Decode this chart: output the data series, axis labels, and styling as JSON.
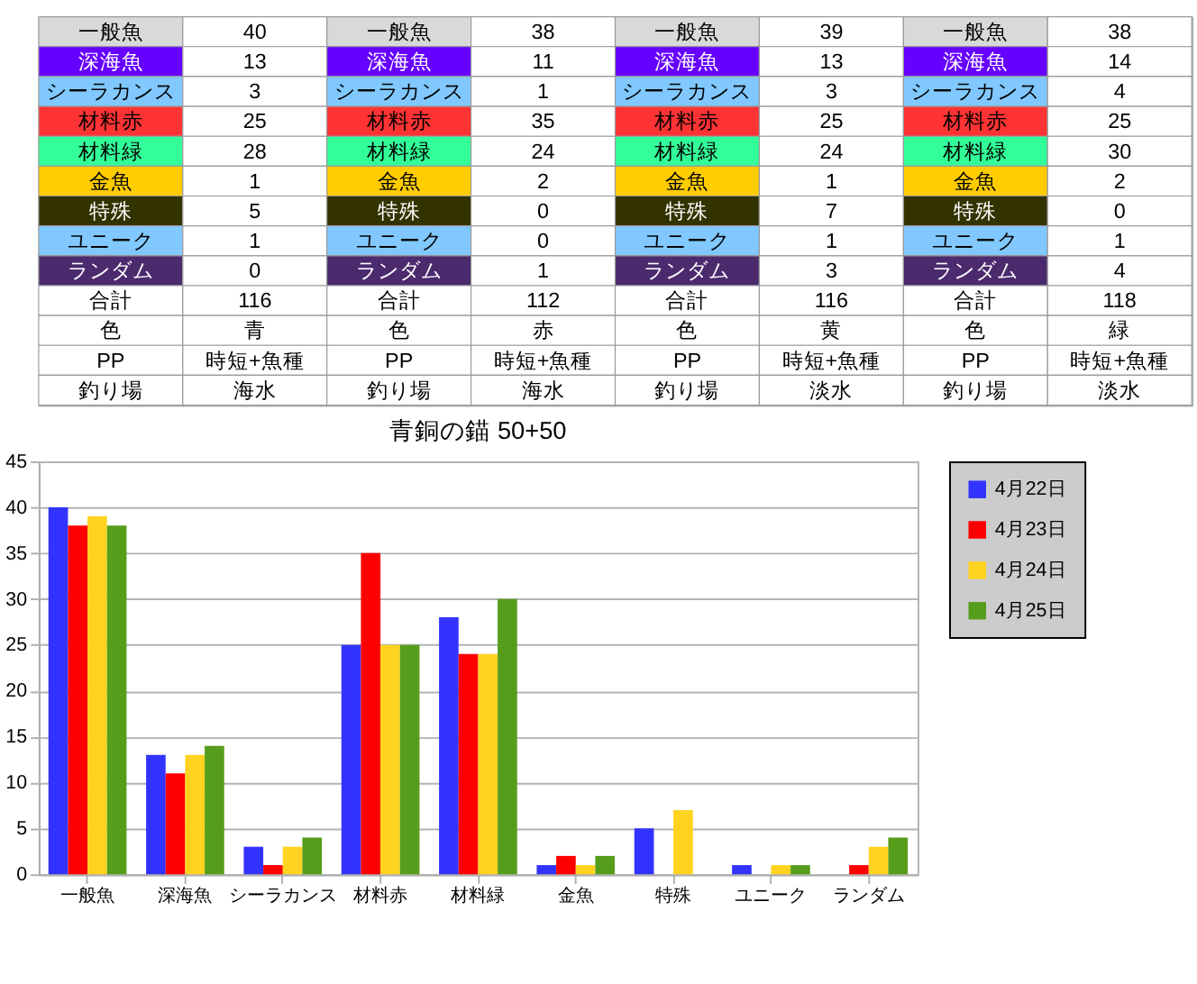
{
  "chart_data": {
    "type": "bar",
    "title": "青銅の錨 50+50",
    "categories": [
      "一般魚",
      "深海魚",
      "シーラカンス",
      "材料赤",
      "材料緑",
      "金魚",
      "特殊",
      "ユニーク",
      "ランダム"
    ],
    "series": [
      {
        "name": "4月22日",
        "color": "#3333ff",
        "values": [
          40,
          13,
          3,
          25,
          28,
          1,
          5,
          1,
          0
        ]
      },
      {
        "name": "4月23日",
        "color": "#ff0000",
        "values": [
          38,
          11,
          1,
          35,
          24,
          2,
          0,
          0,
          1
        ]
      },
      {
        "name": "4月24日",
        "color": "#ffd320",
        "values": [
          39,
          13,
          3,
          25,
          24,
          1,
          7,
          1,
          3
        ]
      },
      {
        "name": "4月25日",
        "color": "#579d1c",
        "values": [
          38,
          14,
          4,
          25,
          30,
          2,
          0,
          1,
          4
        ]
      }
    ],
    "ylim": [
      0,
      45
    ],
    "yticks": [
      0,
      5,
      10,
      15,
      20,
      25,
      30,
      35,
      40,
      45
    ],
    "grid": "y",
    "legend": "right",
    "annotations": [
      "一般魚",
      "40",
      "一般魚",
      "38",
      "一般魚",
      "39",
      "一般魚",
      "38",
      "深海魚",
      "13",
      "深海魚",
      "11",
      "深海魚",
      "13",
      "深海魚",
      "14",
      "シーラカンス",
      "3",
      "シーラカンス",
      "1",
      "シーラカンス",
      "3",
      "シーラカンス",
      "4",
      "材料赤",
      "25",
      "材料赤",
      "35",
      "材料赤",
      "25",
      "材料赤",
      "25",
      "材料緑",
      "28",
      "材料緑",
      "24",
      "材料緑",
      "24",
      "材料緑",
      "30",
      "金魚",
      "1",
      "金魚",
      "2",
      "金魚",
      "1",
      "金魚",
      "2",
      "特殊",
      "5",
      "特殊",
      "0",
      "特殊",
      "7",
      "特殊",
      "0",
      "ユニーク",
      "1",
      "ユニーク",
      "0",
      "ユニーク",
      "1",
      "ユニーク",
      "1",
      "ランダム",
      "0",
      "ランダム",
      "1",
      "ランダム",
      "3",
      "ランダム",
      "4",
      "合計",
      "116",
      "合計",
      "112",
      "合計",
      "116",
      "合計",
      "118",
      "色",
      "青",
      "色",
      "赤",
      "色",
      "黄",
      "色",
      "緑",
      "PP",
      "時短+魚種",
      "PP",
      "時短+魚種",
      "PP",
      "時短+魚種",
      "PP",
      "時短+魚種",
      "釣り場",
      "海水",
      "釣り場",
      "海水",
      "釣り場",
      "淡水",
      "釣り場",
      "淡水"
    ]
  }
}
